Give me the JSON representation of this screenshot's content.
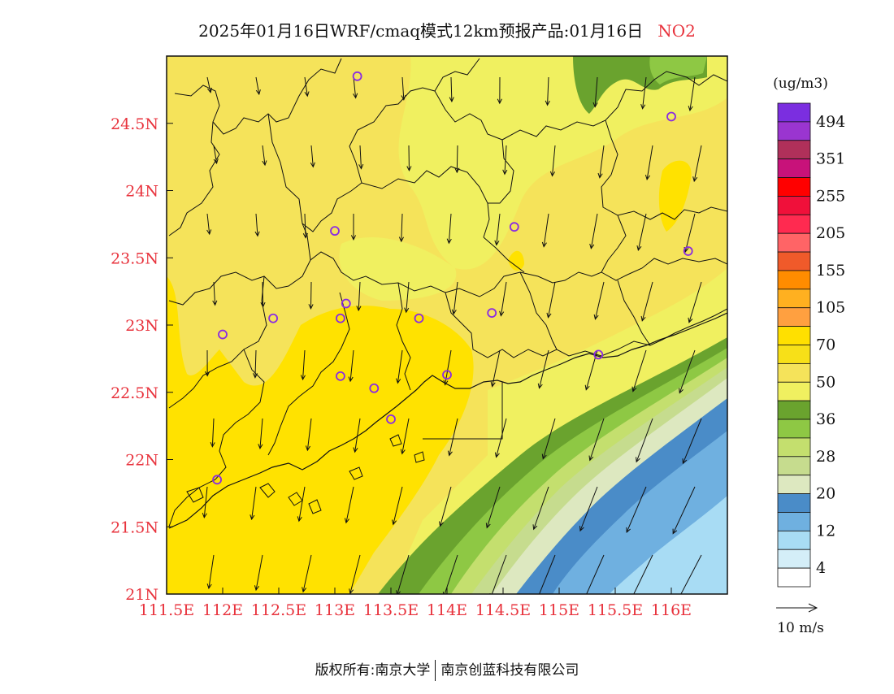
{
  "title": {
    "text": "2025年01月16日WRF/cmaq模式12km预报产品:01月16日",
    "species": "NO2"
  },
  "colors": {
    "species": "#e8323c",
    "axis_labels": "#e8323c",
    "station_marker": "#8a2be2"
  },
  "map": {
    "lon_ticks": [
      "111.5E",
      "112E",
      "112.5E",
      "113E",
      "113.5E",
      "114E",
      "114.5E",
      "115E",
      "115.5E",
      "116E"
    ],
    "lon_values": [
      111.5,
      112.0,
      112.5,
      113.0,
      113.5,
      114.0,
      114.5,
      115.0,
      115.5,
      116.0
    ],
    "lat_ticks": [
      "21N",
      "21.5N",
      "22N",
      "22.5N",
      "23N",
      "23.5N",
      "24N",
      "24.5N"
    ],
    "lat_values": [
      21.0,
      21.5,
      22.0,
      22.5,
      23.0,
      23.5,
      24.0,
      24.5
    ],
    "lon_range": [
      111.5,
      116.5
    ],
    "lat_range": [
      21.0,
      25.0
    ]
  },
  "legend": {
    "unit": "(ug/m3)",
    "labels": [
      "494",
      "351",
      "255",
      "205",
      "155",
      "105",
      "70",
      "50",
      "36",
      "28",
      "20",
      "12",
      "4"
    ],
    "colors": [
      "#7b2ee0",
      "#9a35d0",
      "#b0305a",
      "#c8127a",
      "#ff0000",
      "#f0103a",
      "#ff2a50",
      "#ff6466",
      "#f05a2a",
      "#ff8c00",
      "#ffb020",
      "#ffa040",
      "#ffe000",
      "#f7e018",
      "#f5e35a",
      "#f0f060",
      "#6aa32e",
      "#8ec844",
      "#c4df6e",
      "#c6dc8e",
      "#dde8c0",
      "#4a8cc8",
      "#6fb0e0",
      "#a8dcf4",
      "#d4eef8",
      "#ffffff"
    ]
  },
  "wind": {
    "reference_label": "10 m/s"
  },
  "footer": {
    "left": "版权所有:南京大学",
    "right": "南京创蓝科技有限公司"
  }
}
